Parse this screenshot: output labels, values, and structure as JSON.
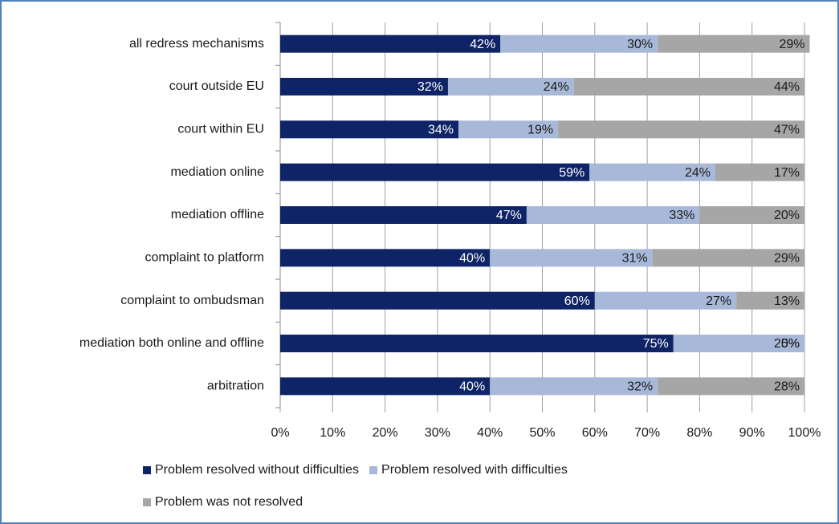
{
  "chart_data": {
    "type": "bar",
    "orientation": "horizontal",
    "stacked": true,
    "categories": [
      "all redress mechanisms",
      "court outside EU",
      "court within EU",
      "mediation online",
      "mediation offline",
      "complaint to platform",
      "complaint to ombudsman",
      "mediation both online and offline",
      "arbitration"
    ],
    "series": [
      {
        "name": "Problem resolved without difficulties",
        "color": "#0f2466",
        "values": [
          42,
          32,
          34,
          59,
          47,
          40,
          60,
          75,
          40
        ],
        "value_labels": [
          "42%",
          "32%",
          "34%",
          "59%",
          "47%",
          "40%",
          "60%",
          "75%",
          "40%"
        ]
      },
      {
        "name": "Problem resolved with difficulties",
        "color": "#a8b8d8",
        "values": [
          30,
          24,
          19,
          24,
          33,
          31,
          27,
          25,
          32
        ],
        "value_labels": [
          "30%",
          "24%",
          "19%",
          "24%",
          "33%",
          "31%",
          "27%",
          "25%",
          "32%"
        ]
      },
      {
        "name": "Problem was not resolved",
        "color": "#a6a6a6",
        "values": [
          29,
          44,
          47,
          17,
          20,
          29,
          13,
          0,
          28
        ],
        "value_labels": [
          "29%",
          "44%",
          "47%",
          "17%",
          "20%",
          "29%",
          "13%",
          "0%",
          "28%"
        ]
      }
    ],
    "xlim": [
      0,
      100
    ],
    "xticks": [
      {
        "value": 0,
        "label": "0%"
      },
      {
        "value": 10,
        "label": "10%"
      },
      {
        "value": 20,
        "label": "20%"
      },
      {
        "value": 30,
        "label": "30%"
      },
      {
        "value": 40,
        "label": "40%"
      },
      {
        "value": 50,
        "label": "50%"
      },
      {
        "value": 60,
        "label": "60%"
      },
      {
        "value": 70,
        "label": "70%"
      },
      {
        "value": 80,
        "label": "80%"
      },
      {
        "value": 90,
        "label": "90%"
      },
      {
        "value": 100,
        "label": "100%"
      }
    ],
    "grid": true,
    "legend": "bottom"
  }
}
